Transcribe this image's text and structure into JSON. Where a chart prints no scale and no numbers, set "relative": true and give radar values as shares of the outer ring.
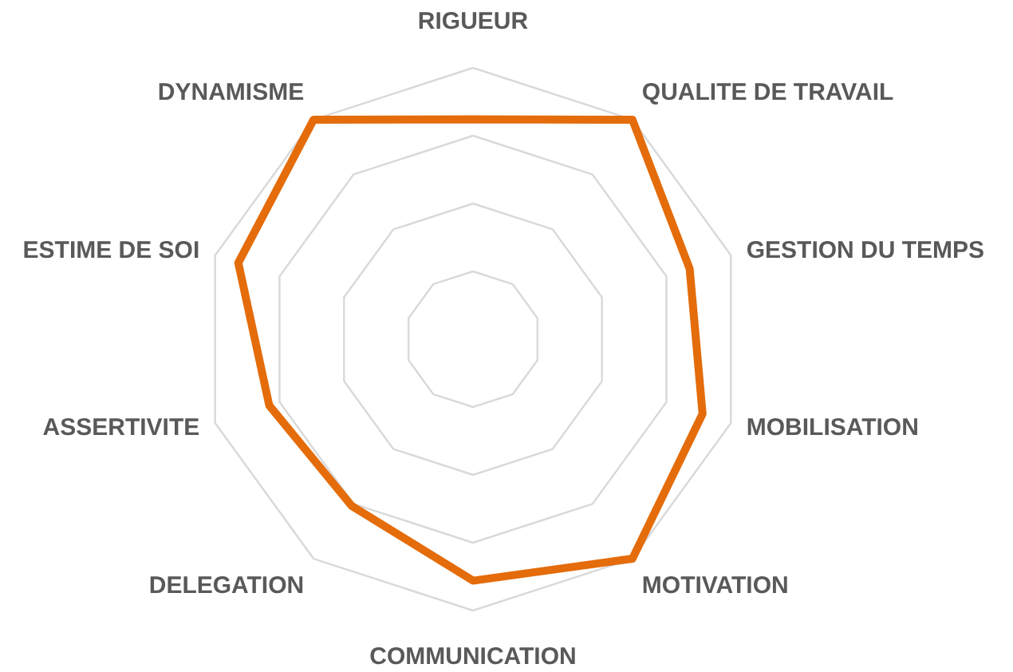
{
  "chart_data": {
    "type": "radar",
    "relative": true,
    "grid": true,
    "categories": [
      "RIGUEUR",
      "QUALITE DE TRAVAIL",
      "GESTION DU TEMPS",
      "MOBILISATION",
      "MOTIVATION",
      "COMMUNICATION",
      "DELEGATION",
      "ASSERTIVITE",
      "ESTIME DE SOI",
      "DYNAMISME"
    ],
    "series": [
      {
        "color": "#e46c0a",
        "values": [
          0.81,
          1.0,
          0.84,
          0.89,
          1.0,
          0.89,
          0.76,
          0.79,
          0.91,
          1.0
        ]
      }
    ]
  }
}
